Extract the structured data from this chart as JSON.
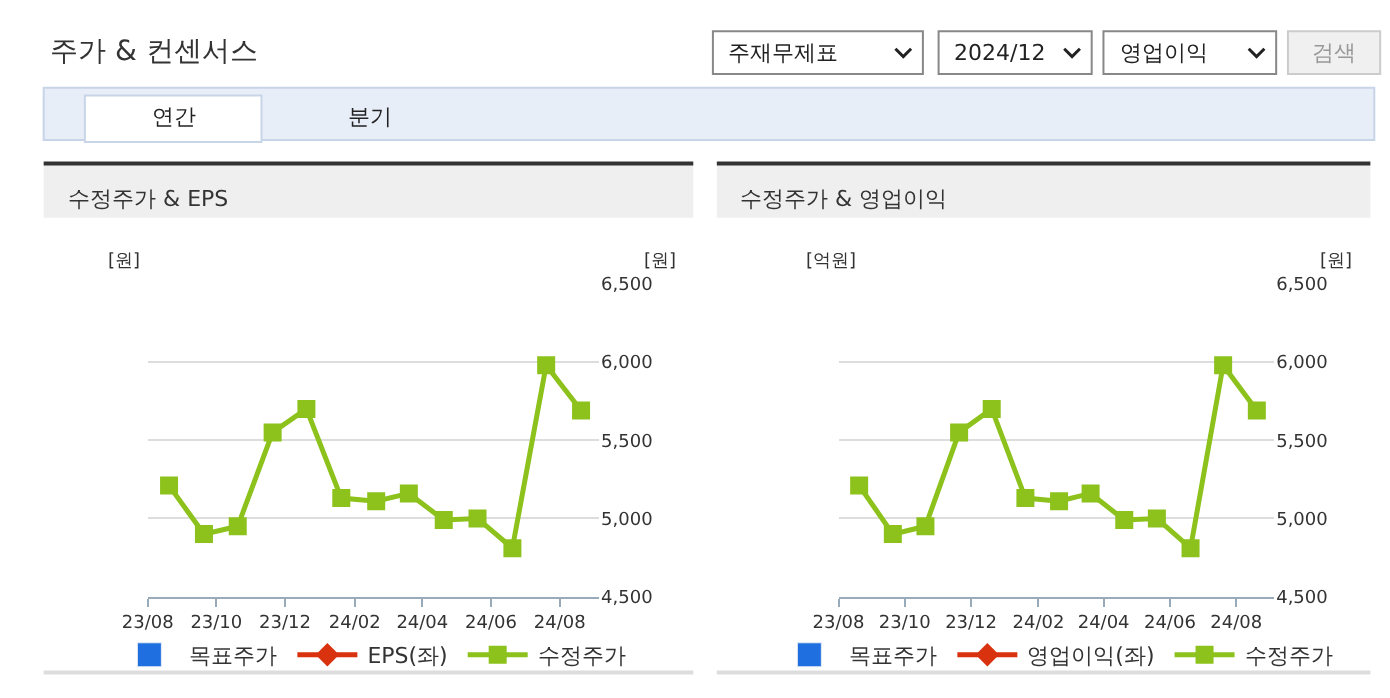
{
  "chart_data": [
    {
      "type": "line",
      "title": "수정주가 & EPS",
      "ylabel": "[원]",
      "y2label": "[원]",
      "grid": "y",
      "legend": "bottom",
      "tick_labels": "x",
      "x": [
        "2023-08-20",
        "2023-09-20",
        "2023-10-20",
        "2023-11-20",
        "2023-12-20",
        "2024-01-20",
        "2024-02-20",
        "2024-03-20",
        "2024-04-20",
        "2024-05-20",
        "2024-06-20",
        "2024-07-20",
        "2024-08-20"
      ],
      "xlim": [
        "2023-08-01",
        "2024-09-05"
      ],
      "xticks": [
        {
          "value": "2023-08-01",
          "label": "23/08"
        },
        {
          "value": "2023-10-01",
          "label": "23/10"
        },
        {
          "value": "2023-12-01",
          "label": "23/12"
        },
        {
          "value": "2024-02-01",
          "label": "24/02"
        },
        {
          "value": "2024-04-01",
          "label": "24/04"
        },
        {
          "value": "2024-06-01",
          "label": "24/06"
        },
        {
          "value": "2024-08-01",
          "label": "24/08"
        }
      ],
      "y2lim": [
        4500,
        6500
      ],
      "y2ticks": [
        {
          "value": 4500,
          "label": "4,500"
        },
        {
          "value": 5000,
          "label": "5,000"
        },
        {
          "value": 5500,
          "label": "5,500"
        },
        {
          "value": 6000,
          "label": "6,000"
        },
        {
          "value": 6500,
          "label": "6,500"
        }
      ],
      "series": [
        {
          "name": "목표주가",
          "type": "bar",
          "color": "#1f6fe0",
          "values": [
            null,
            null,
            null,
            null,
            null,
            null,
            null,
            null,
            null,
            null,
            null,
            null,
            null
          ]
        },
        {
          "name": "EPS(좌)",
          "type": "line",
          "marker": "diamond",
          "color": "#d9320e",
          "values": [
            null,
            null,
            null,
            null,
            null,
            null,
            null,
            null,
            null,
            null,
            null,
            null,
            null
          ]
        },
        {
          "name": "수정주가",
          "type": "line",
          "marker": "square",
          "axis": "y2",
          "color": "#8cc21b",
          "values": [
            5210,
            4900,
            4950,
            5550,
            5700,
            5130,
            5110,
            5160,
            4990,
            5000,
            4810,
            5980,
            5690
          ]
        }
      ]
    },
    {
      "type": "line",
      "title": "수정주가 & 영업이익",
      "ylabel": "[억원]",
      "y2label": "[원]",
      "grid": "y",
      "legend": "bottom",
      "tick_labels": "x",
      "x": [
        "2023-08-20",
        "2023-09-20",
        "2023-10-20",
        "2023-11-20",
        "2023-12-20",
        "2024-01-20",
        "2024-02-20",
        "2024-03-20",
        "2024-04-20",
        "2024-05-20",
        "2024-06-20",
        "2024-07-20",
        "2024-08-20"
      ],
      "xlim": [
        "2023-08-01",
        "2024-09-05"
      ],
      "xticks": [
        {
          "value": "2023-08-01",
          "label": "23/08"
        },
        {
          "value": "2023-10-01",
          "label": "23/10"
        },
        {
          "value": "2023-12-01",
          "label": "23/12"
        },
        {
          "value": "2024-02-01",
          "label": "24/02"
        },
        {
          "value": "2024-04-01",
          "label": "24/04"
        },
        {
          "value": "2024-06-01",
          "label": "24/06"
        },
        {
          "value": "2024-08-01",
          "label": "24/08"
        }
      ],
      "y2lim": [
        4500,
        6500
      ],
      "y2ticks": [
        {
          "value": 4500,
          "label": "4,500"
        },
        {
          "value": 5000,
          "label": "5,000"
        },
        {
          "value": 5500,
          "label": "5,500"
        },
        {
          "value": 6000,
          "label": "6,000"
        },
        {
          "value": 6500,
          "label": "6,500"
        }
      ],
      "series": [
        {
          "name": "목표주가",
          "type": "bar",
          "color": "#1f6fe0",
          "values": [
            null,
            null,
            null,
            null,
            null,
            null,
            null,
            null,
            null,
            null,
            null,
            null,
            null
          ]
        },
        {
          "name": "영업이익(좌)",
          "type": "line",
          "marker": "diamond",
          "color": "#d9320e",
          "values": [
            null,
            null,
            null,
            null,
            null,
            null,
            null,
            null,
            null,
            null,
            null,
            null,
            null
          ]
        },
        {
          "name": "수정주가",
          "type": "line",
          "marker": "square",
          "axis": "y2",
          "color": "#8cc21b",
          "values": [
            5210,
            4900,
            4950,
            5550,
            5700,
            5130,
            5110,
            5160,
            4990,
            5000,
            4810,
            5980,
            5690
          ]
        }
      ]
    },
    {
      "type": "other",
      "title": "주가 & 컨센서스",
      "annotations": [
        "주재무제표",
        "2024/12",
        "영업이익",
        "검색",
        "연간",
        "분기"
      ]
    }
  ]
}
